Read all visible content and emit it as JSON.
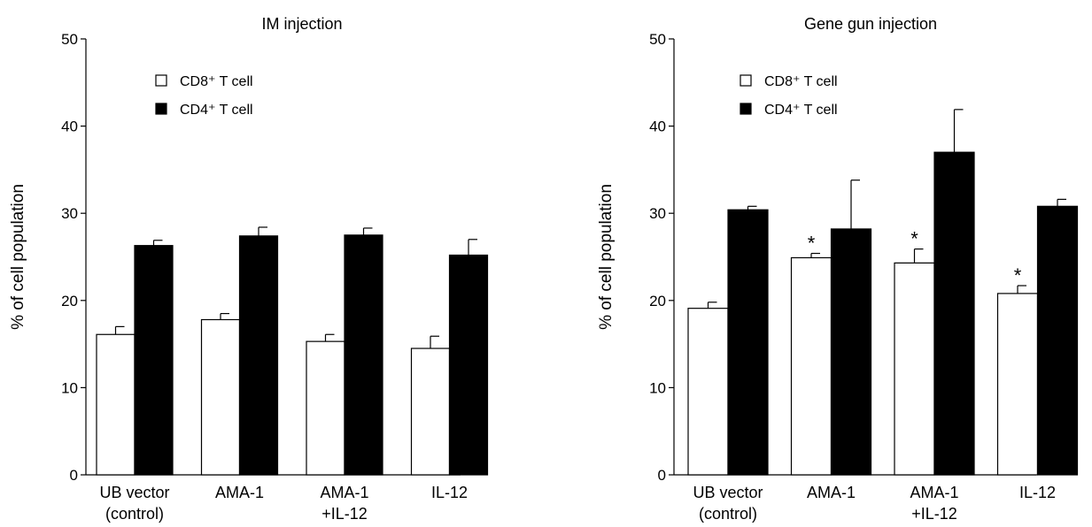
{
  "chart_data": [
    {
      "type": "bar",
      "title": "IM injection",
      "ylabel": "% of cell population",
      "xlabel": "",
      "ylim": [
        0,
        50
      ],
      "yticks": [
        0,
        10,
        20,
        30,
        40,
        50
      ],
      "categories": [
        [
          "UB vector",
          "(control)"
        ],
        [
          "AMA-1"
        ],
        [
          "AMA-1",
          "+IL-12"
        ],
        [
          "IL-12"
        ]
      ],
      "series": [
        {
          "name": "CD8⁺ T cell",
          "color": "#ffffff",
          "values": [
            16.1,
            17.8,
            15.3,
            14.5
          ],
          "errors": [
            0.9,
            0.7,
            0.8,
            1.4
          ],
          "significant": [
            false,
            false,
            false,
            false
          ]
        },
        {
          "name": "CD4⁺ T cell",
          "color": "#000000",
          "values": [
            26.3,
            27.4,
            27.5,
            25.2
          ],
          "errors": [
            0.6,
            1.0,
            0.8,
            1.8
          ],
          "significant": [
            false,
            false,
            false,
            false
          ]
        }
      ],
      "significance_marker": "*",
      "legend_position": "top-left"
    },
    {
      "type": "bar",
      "title": "Gene gun injection",
      "ylabel": "% of cell population",
      "xlabel": "",
      "ylim": [
        0,
        50
      ],
      "yticks": [
        0,
        10,
        20,
        30,
        40,
        50
      ],
      "categories": [
        [
          "UB vector",
          "(control)"
        ],
        [
          "AMA-1"
        ],
        [
          "AMA-1",
          "+IL-12"
        ],
        [
          "IL-12"
        ]
      ],
      "series": [
        {
          "name": "CD8⁺ T cell",
          "color": "#ffffff",
          "values": [
            19.1,
            24.9,
            24.3,
            20.8
          ],
          "errors": [
            0.7,
            0.5,
            1.6,
            0.9
          ],
          "significant": [
            false,
            true,
            true,
            true
          ]
        },
        {
          "name": "CD4⁺ T cell",
          "color": "#000000",
          "values": [
            30.4,
            28.2,
            37.0,
            30.8
          ],
          "errors": [
            0.4,
            5.6,
            4.9,
            0.8
          ],
          "significant": [
            false,
            false,
            false,
            false
          ]
        }
      ],
      "significance_marker": "*",
      "legend_position": "top-left"
    }
  ]
}
